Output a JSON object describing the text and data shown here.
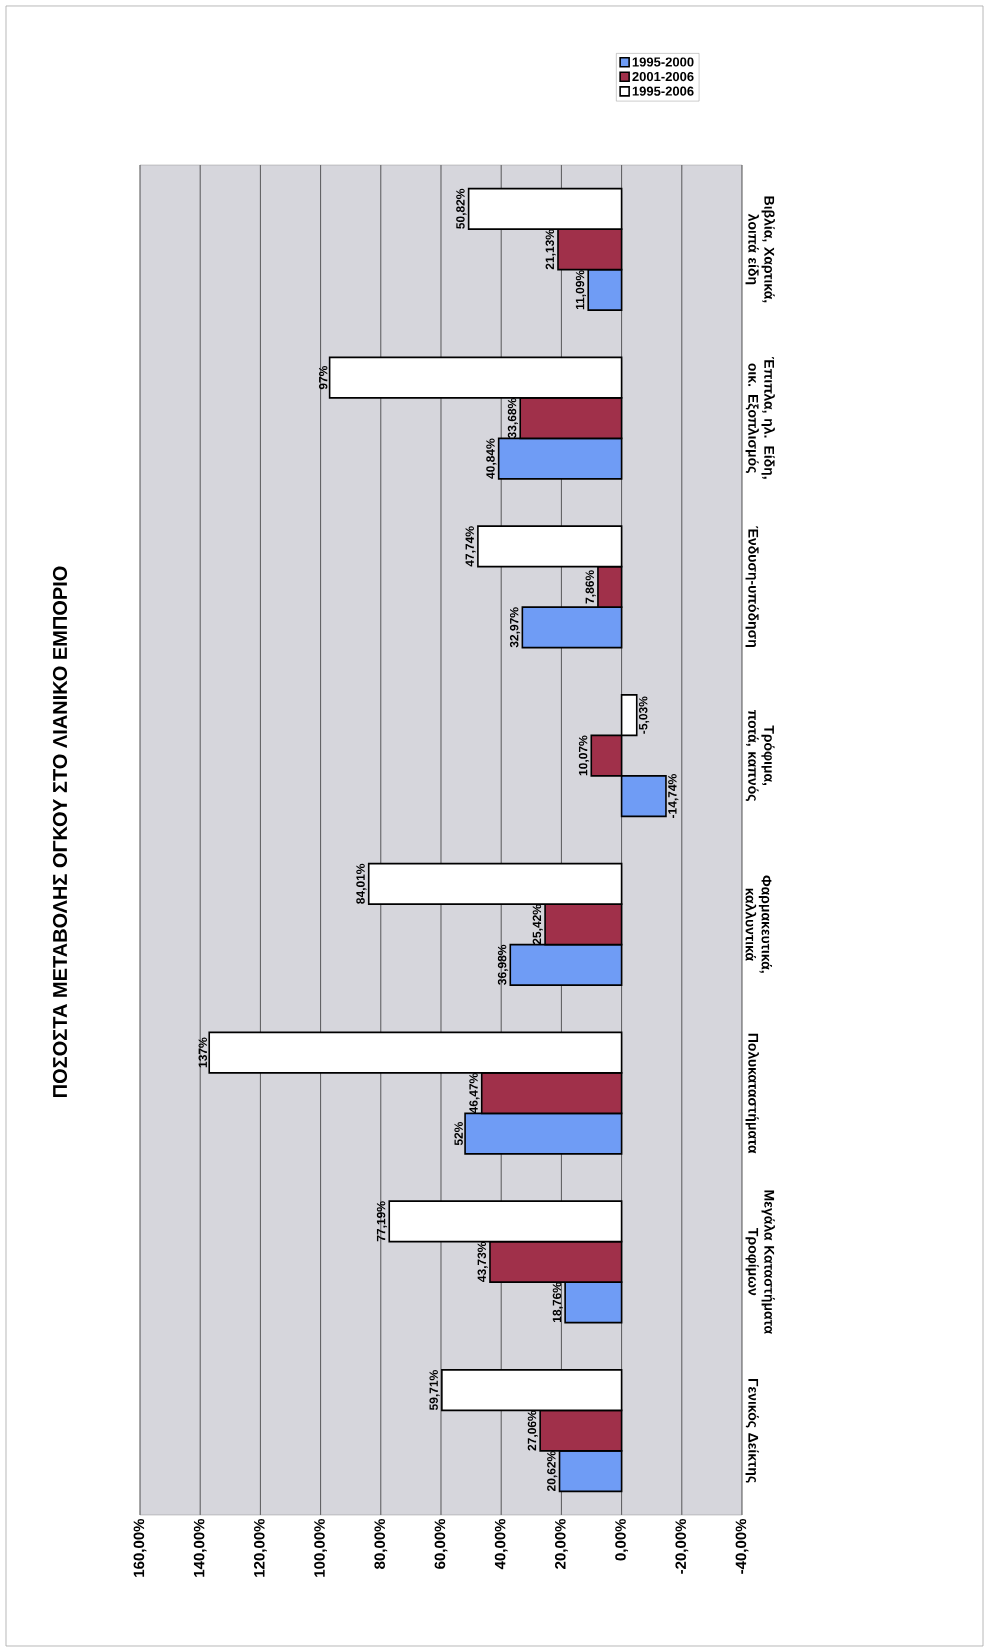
{
  "chart_data": {
    "type": "bar",
    "orientation": "horizontal",
    "title": "ΠΟΣΟΣΤΑ ΜΕΤΑΒΟΛΗΣ ΟΓΚΟΥ ΣΤΟ ΛΙΑΝΙΚΟ ΕΜΠΟΡΙΟ",
    "categories": [
      "Βιβλία, Χαρτικά, λοιπά είδη",
      "Έπιπλα, ηλ. Είδη, οικ. Εξοπλισμός",
      "Ένδυση-υπόδηση",
      "Τρόφιμα, ποτά, καπνός",
      "Φαρμακευτικά, καλλυντικά",
      "Πολυκαταστήματα",
      "Μεγάλα Καταστήματα Τροφίμων",
      "Γενικός Δείκτης"
    ],
    "series": [
      {
        "name": "1995-2000",
        "color": "#6f9cf5",
        "values": [
          11.09,
          40.84,
          32.97,
          -14.74,
          36.98,
          52,
          18.76,
          20.62
        ],
        "value_labels": [
          "11,09%",
          "40,84%",
          "32,97%",
          "-14,74%",
          "36,98%",
          "52%",
          "18,76%",
          "20,62%"
        ]
      },
      {
        "name": "2001-2006",
        "color": "#a0304a",
        "values": [
          21.13,
          33.68,
          7.86,
          10.07,
          25.42,
          46.47,
          43.73,
          27.06
        ],
        "value_labels": [
          "21,13%",
          "33,68%",
          "7,86%",
          "10,07%",
          "25,42%",
          "46,47%",
          "43,73%",
          "27,06%"
        ]
      },
      {
        "name": "1995-2006",
        "color": "#ffffff",
        "values": [
          50.82,
          97,
          47.74,
          -5.03,
          84.01,
          137,
          77.19,
          59.71
        ],
        "value_labels": [
          "50,82%",
          "97%",
          "47,74%",
          "-5,03%",
          "84,01%",
          "137%",
          "77,19%",
          "59,71%"
        ]
      }
    ],
    "xlim": [
      160,
      -40
    ],
    "xticks": [
      {
        "value": -40,
        "label": "-40,00%"
      },
      {
        "value": -20,
        "label": "-20,00%"
      },
      {
        "value": 0,
        "label": "0,00%"
      },
      {
        "value": 20,
        "label": "20,00%"
      },
      {
        "value": 40,
        "label": "40,00%"
      },
      {
        "value": 60,
        "label": "60,00%"
      },
      {
        "value": 80,
        "label": "80,00%"
      },
      {
        "value": 100,
        "label": "100,00%"
      },
      {
        "value": 120,
        "label": "120,00%"
      },
      {
        "value": 140,
        "label": "140,00%"
      },
      {
        "value": 160,
        "label": "160,00%"
      }
    ],
    "grid": "x",
    "legend": "top right"
  }
}
